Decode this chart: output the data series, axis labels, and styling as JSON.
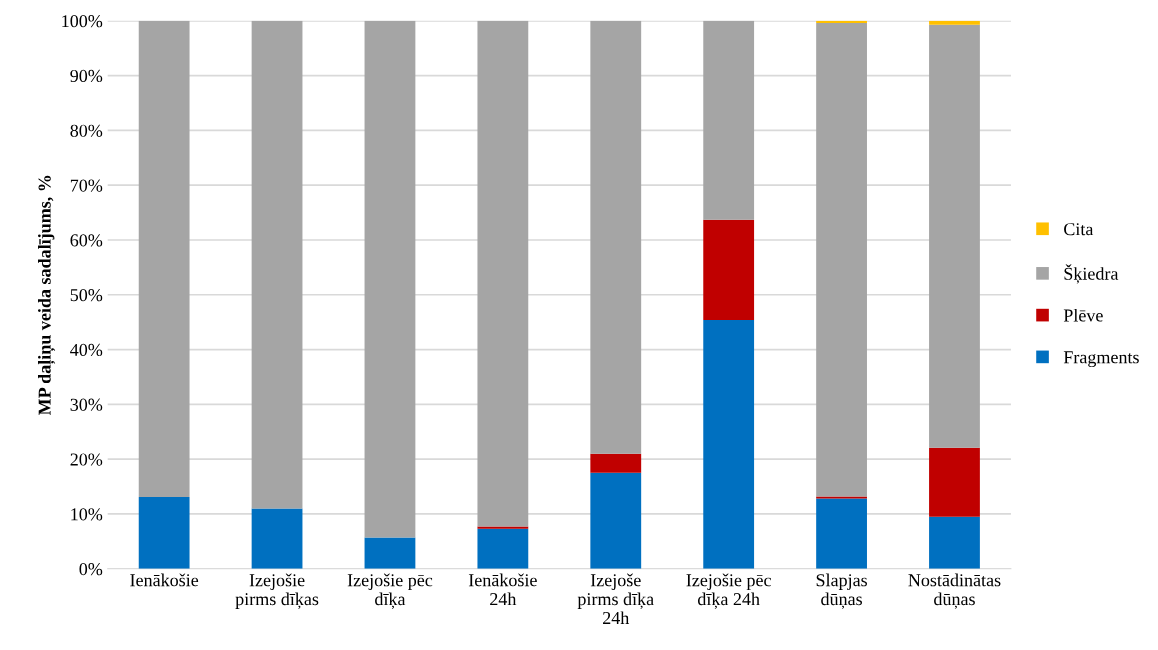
{
  "chart_data": {
    "type": "bar",
    "stacked": true,
    "ylabel": "MP daļiņu veida sadalījums, %",
    "categories": [
      "Ienākošie",
      "Izejošie\npirms dīķas",
      "Izejošie pēc\ndīķa",
      "Ienākošie\n24h",
      "Izejoše\npirms dīķa\n24h",
      "Izejošie pēc\ndīķa 24h",
      "Slapjas\ndūņas",
      "Nostādinātas\ndūņas"
    ],
    "series": [
      {
        "name": "Fragments",
        "color": "#0070c0",
        "values": [
          13.1,
          11.0,
          5.7,
          7.3,
          17.5,
          45.4,
          12.8,
          9.5
        ]
      },
      {
        "name": "Plēve",
        "color": "#c00000",
        "values": [
          0,
          0,
          0,
          0.4,
          3.5,
          18.3,
          0.4,
          12.6
        ]
      },
      {
        "name": "Šķiedra",
        "color": "#a5a5a5",
        "values": [
          86.9,
          89.0,
          94.3,
          92.3,
          79.0,
          36.3,
          86.4,
          77.2
        ]
      },
      {
        "name": "Cita",
        "color": "#ffc000",
        "values": [
          0,
          0,
          0,
          0,
          0,
          0,
          0.4,
          0.7
        ]
      }
    ],
    "ylim": [
      0,
      100
    ],
    "yticks": [
      {
        "value": 0,
        "label": "0%"
      },
      {
        "value": 10,
        "label": "10%"
      },
      {
        "value": 20,
        "label": "20%"
      },
      {
        "value": 30,
        "label": "30%"
      },
      {
        "value": 40,
        "label": "40%"
      },
      {
        "value": 50,
        "label": "50%"
      },
      {
        "value": 60,
        "label": "60%"
      },
      {
        "value": 70,
        "label": "70%"
      },
      {
        "value": 80,
        "label": "80%"
      },
      {
        "value": 90,
        "label": "90%"
      },
      {
        "value": 100,
        "label": "100%"
      }
    ],
    "grid": "y",
    "legend": "right"
  }
}
